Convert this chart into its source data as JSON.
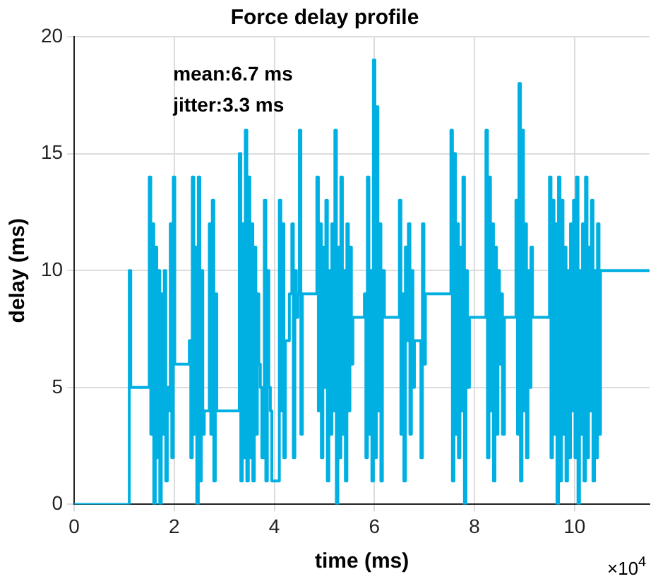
{
  "chart_data": {
    "type": "step",
    "title": "Force delay profile",
    "xlabel": "time (ms)",
    "ylabel": "delay (ms)",
    "xlim": [
      0,
      11.5
    ],
    "xticks": [
      0,
      2,
      4,
      6,
      8,
      10
    ],
    "ylim": [
      0,
      20
    ],
    "yticks": [
      0,
      5,
      10,
      15,
      20
    ],
    "grid": true,
    "line_style": "solid",
    "annotations": [
      "mean:6.7 ms",
      "jitter:3.3 ms",
      "×10$^{4}$"
    ],
    "series": [
      {
        "color": "#00b0e2",
        "x": [
          0,
          1.1,
          1.13,
          1.5,
          1.53,
          1.56,
          1.59,
          1.62,
          1.65,
          1.68,
          1.71,
          1.74,
          1.77,
          1.8,
          1.83,
          1.86,
          1.89,
          1.92,
          1.95,
          1.98,
          2.01,
          2.3,
          2.33,
          2.36,
          2.39,
          2.42,
          2.45,
          2.48,
          2.51,
          2.54,
          2.57,
          2.6,
          2.7,
          2.73,
          2.76,
          2.79,
          2.82,
          2.85,
          2.9,
          3.3,
          3.33,
          3.36,
          3.39,
          3.42,
          3.45,
          3.48,
          3.51,
          3.54,
          3.57,
          3.6,
          3.63,
          3.66,
          3.69,
          3.72,
          3.75,
          3.8,
          3.83,
          3.86,
          3.89,
          3.92,
          3.95,
          4.1,
          4.13,
          4.16,
          4.19,
          4.22,
          4.3,
          4.35,
          4.38,
          4.41,
          4.44,
          4.47,
          4.5,
          4.53,
          4.56,
          4.7,
          4.85,
          4.88,
          4.91,
          4.94,
          4.97,
          5.0,
          5.03,
          5.06,
          5.09,
          5.12,
          5.15,
          5.18,
          5.21,
          5.24,
          5.27,
          5.3,
          5.33,
          5.36,
          5.39,
          5.42,
          5.45,
          5.48,
          5.51,
          5.54,
          5.57,
          5.8,
          5.83,
          5.86,
          5.89,
          5.92,
          5.95,
          5.98,
          6.01,
          6.04,
          6.07,
          6.1,
          6.13,
          6.16,
          6.2,
          6.4,
          6.5,
          6.53,
          6.56,
          6.59,
          6.62,
          6.65,
          6.68,
          6.71,
          6.74,
          6.77,
          6.8,
          6.9,
          6.93,
          6.96,
          6.99,
          7.02,
          7.2,
          7.5,
          7.53,
          7.56,
          7.59,
          7.62,
          7.65,
          7.68,
          7.71,
          7.74,
          7.77,
          7.8,
          7.83,
          7.86,
          7.9,
          8.2,
          8.23,
          8.26,
          8.29,
          8.32,
          8.35,
          8.38,
          8.41,
          8.44,
          8.47,
          8.5,
          8.53,
          8.56,
          8.6,
          8.8,
          8.83,
          8.86,
          8.89,
          8.92,
          8.95,
          8.98,
          9.01,
          9.04,
          9.07,
          9.1,
          9.13,
          9.16,
          9.2,
          9.5,
          9.53,
          9.56,
          9.59,
          9.62,
          9.65,
          9.68,
          9.71,
          9.74,
          9.77,
          9.8,
          9.83,
          9.86,
          9.89,
          9.92,
          9.95,
          9.98,
          10.01,
          10.04,
          10.07,
          10.1,
          10.13,
          10.16,
          10.19,
          10.22,
          10.25,
          10.28,
          10.31,
          10.34,
          10.37,
          10.4,
          10.43,
          10.46,
          10.49,
          10.52,
          10.55,
          11.5
        ],
        "values": [
          0,
          10,
          5,
          14,
          3,
          12,
          0,
          11,
          2,
          10,
          0,
          9,
          3,
          10,
          1,
          5,
          4,
          12,
          2,
          14,
          6,
          7,
          2,
          14,
          3,
          11,
          0,
          14,
          1,
          10,
          3,
          4,
          12,
          3,
          13,
          1,
          9,
          4,
          4,
          15,
          1,
          12,
          2,
          16,
          1,
          14,
          2,
          12,
          1,
          11,
          3,
          9,
          6,
          5,
          2,
          13,
          1,
          10,
          5,
          4,
          1,
          13,
          4,
          12,
          2,
          7,
          9,
          12,
          2,
          10,
          8,
          9,
          16,
          3,
          9,
          9,
          14,
          4,
          12,
          2,
          11,
          5,
          13,
          1,
          10,
          3,
          12,
          4,
          16,
          0,
          11,
          2,
          14,
          3,
          10,
          1,
          12,
          4,
          11,
          6,
          8,
          9,
          2,
          14,
          3,
          10,
          1,
          19,
          2,
          17,
          4,
          12,
          1,
          10,
          8,
          8,
          13,
          3,
          9,
          1,
          11,
          7,
          12,
          3,
          10,
          5,
          7,
          7,
          2,
          12,
          6,
          9,
          9,
          9,
          16,
          1,
          15,
          3,
          12,
          2,
          11,
          4,
          14,
          0,
          10,
          5,
          8,
          8,
          16,
          2,
          14,
          4,
          12,
          1,
          11,
          3,
          10,
          6,
          9,
          3,
          8,
          8,
          13,
          3,
          18,
          1,
          16,
          4,
          12,
          2,
          10,
          5,
          11,
          8,
          8,
          14,
          2,
          13,
          3,
          12,
          0,
          14,
          1,
          13,
          3,
          11,
          1,
          10,
          2,
          12,
          4,
          13,
          2,
          14,
          0,
          10,
          3,
          12,
          1,
          14,
          2,
          11,
          4,
          13,
          1,
          10,
          2,
          12,
          3,
          10,
          10,
          10
        ]
      }
    ]
  }
}
